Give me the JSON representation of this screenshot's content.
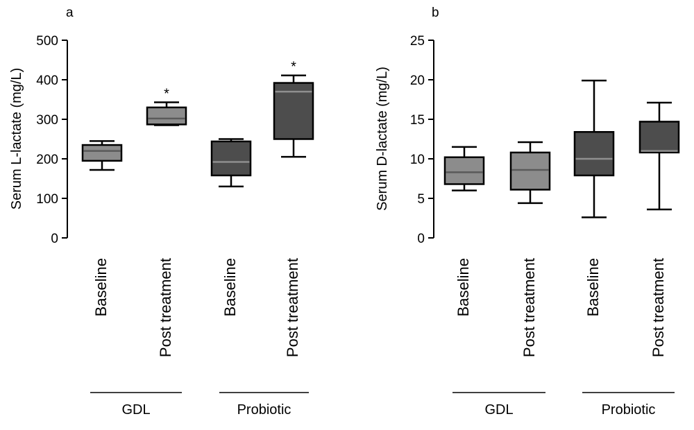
{
  "chart_data": [
    {
      "panel_label": "a",
      "type": "boxplot",
      "ylabel": "Serum L-lactate (mg/L)",
      "ylim": [
        0,
        500
      ],
      "yticks": [
        "0",
        "100",
        "200",
        "300",
        "400",
        "500"
      ],
      "categories": [
        "Baseline",
        "Post treatment",
        "Baseline",
        "Post treatment"
      ],
      "groups": [
        {
          "name": "GDL",
          "categories": [
            0,
            1
          ]
        },
        {
          "name": "Probiotic",
          "categories": [
            2,
            3
          ]
        }
      ],
      "boxes": [
        {
          "category": "Baseline",
          "group": "GDL",
          "min": 172,
          "q1": 195,
          "median": 220,
          "q3": 235,
          "max": 245,
          "color": "#8c8c8c",
          "annotation": ""
        },
        {
          "category": "Post treatment",
          "group": "GDL",
          "min": 285,
          "q1": 287,
          "median": 302,
          "q3": 330,
          "max": 343,
          "color": "#8c8c8c",
          "annotation": "*"
        },
        {
          "category": "Baseline",
          "group": "Probiotic",
          "min": 130,
          "q1": 158,
          "median": 192,
          "q3": 244,
          "max": 250,
          "color": "#4d4d4d",
          "annotation": ""
        },
        {
          "category": "Post treatment",
          "group": "Probiotic",
          "min": 205,
          "q1": 250,
          "median": 370,
          "q3": 392,
          "max": 411,
          "color": "#4d4d4d",
          "annotation": "*"
        }
      ]
    },
    {
      "panel_label": "b",
      "type": "boxplot",
      "ylabel": "Serum D-lactate (mg/L)",
      "ylim": [
        0,
        25
      ],
      "yticks": [
        "0",
        "5",
        "10",
        "15",
        "20",
        "25"
      ],
      "categories": [
        "Baseline",
        "Post treatment",
        "Baseline",
        "Post treatment"
      ],
      "groups": [
        {
          "name": "GDL",
          "categories": [
            0,
            1
          ]
        },
        {
          "name": "Probiotic",
          "categories": [
            2,
            3
          ]
        }
      ],
      "boxes": [
        {
          "category": "Baseline",
          "group": "GDL",
          "min": 6.0,
          "q1": 6.8,
          "median": 8.3,
          "q3": 10.2,
          "max": 11.5,
          "color": "#8c8c8c",
          "annotation": ""
        },
        {
          "category": "Post treatment",
          "group": "GDL",
          "min": 4.4,
          "q1": 6.1,
          "median": 8.6,
          "q3": 10.8,
          "max": 12.1,
          "color": "#8c8c8c",
          "annotation": ""
        },
        {
          "category": "Baseline",
          "group": "Probiotic",
          "min": 2.6,
          "q1": 7.9,
          "median": 10.0,
          "q3": 13.4,
          "max": 19.9,
          "color": "#4d4d4d",
          "annotation": ""
        },
        {
          "category": "Post treatment",
          "group": "Probiotic",
          "min": 3.6,
          "q1": 10.8,
          "median": 11.0,
          "q3": 14.7,
          "max": 17.1,
          "color": "#4d4d4d",
          "annotation": ""
        }
      ]
    }
  ]
}
